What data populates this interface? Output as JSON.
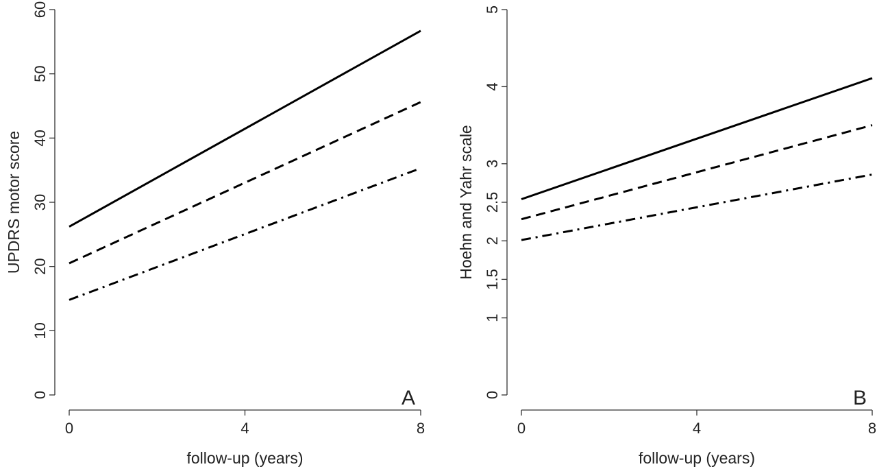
{
  "chart_data": [
    {
      "type": "line",
      "annotation": "A",
      "xlabel": "follow-up (years)",
      "ylabel": "UPDRS motor score",
      "x": [
        0,
        8
      ],
      "xlim": [
        0,
        8
      ],
      "xticks": [
        0,
        4,
        8
      ],
      "ylim": [
        0,
        60
      ],
      "yticks": [
        0,
        10,
        20,
        30,
        40,
        50,
        60
      ],
      "series": [
        {
          "color": "#000000",
          "linestyle": "solid",
          "values": [
            26.2,
            56.7
          ]
        },
        {
          "color": "#000000",
          "linestyle": "dashed",
          "values": [
            20.5,
            45.6
          ]
        },
        {
          "color": "#000000",
          "linestyle": "dashdot",
          "values": [
            14.8,
            35.3
          ]
        }
      ]
    },
    {
      "type": "line",
      "annotation": "B",
      "xlabel": "follow-up (years)",
      "ylabel": "Hoehn and Yahr scale",
      "x": [
        0,
        8
      ],
      "xlim": [
        0,
        8
      ],
      "xticks": [
        0,
        4,
        8
      ],
      "ylim": [
        0,
        5
      ],
      "yticks": [
        0,
        1,
        1.5,
        2,
        2.5,
        3,
        4,
        5
      ],
      "series": [
        {
          "color": "#000000",
          "linestyle": "solid",
          "values": [
            2.54,
            4.11
          ]
        },
        {
          "color": "#000000",
          "linestyle": "dashed",
          "values": [
            2.28,
            3.5
          ]
        },
        {
          "color": "#000000",
          "linestyle": "dashdot",
          "values": [
            2.01,
            2.86
          ]
        }
      ]
    }
  ]
}
